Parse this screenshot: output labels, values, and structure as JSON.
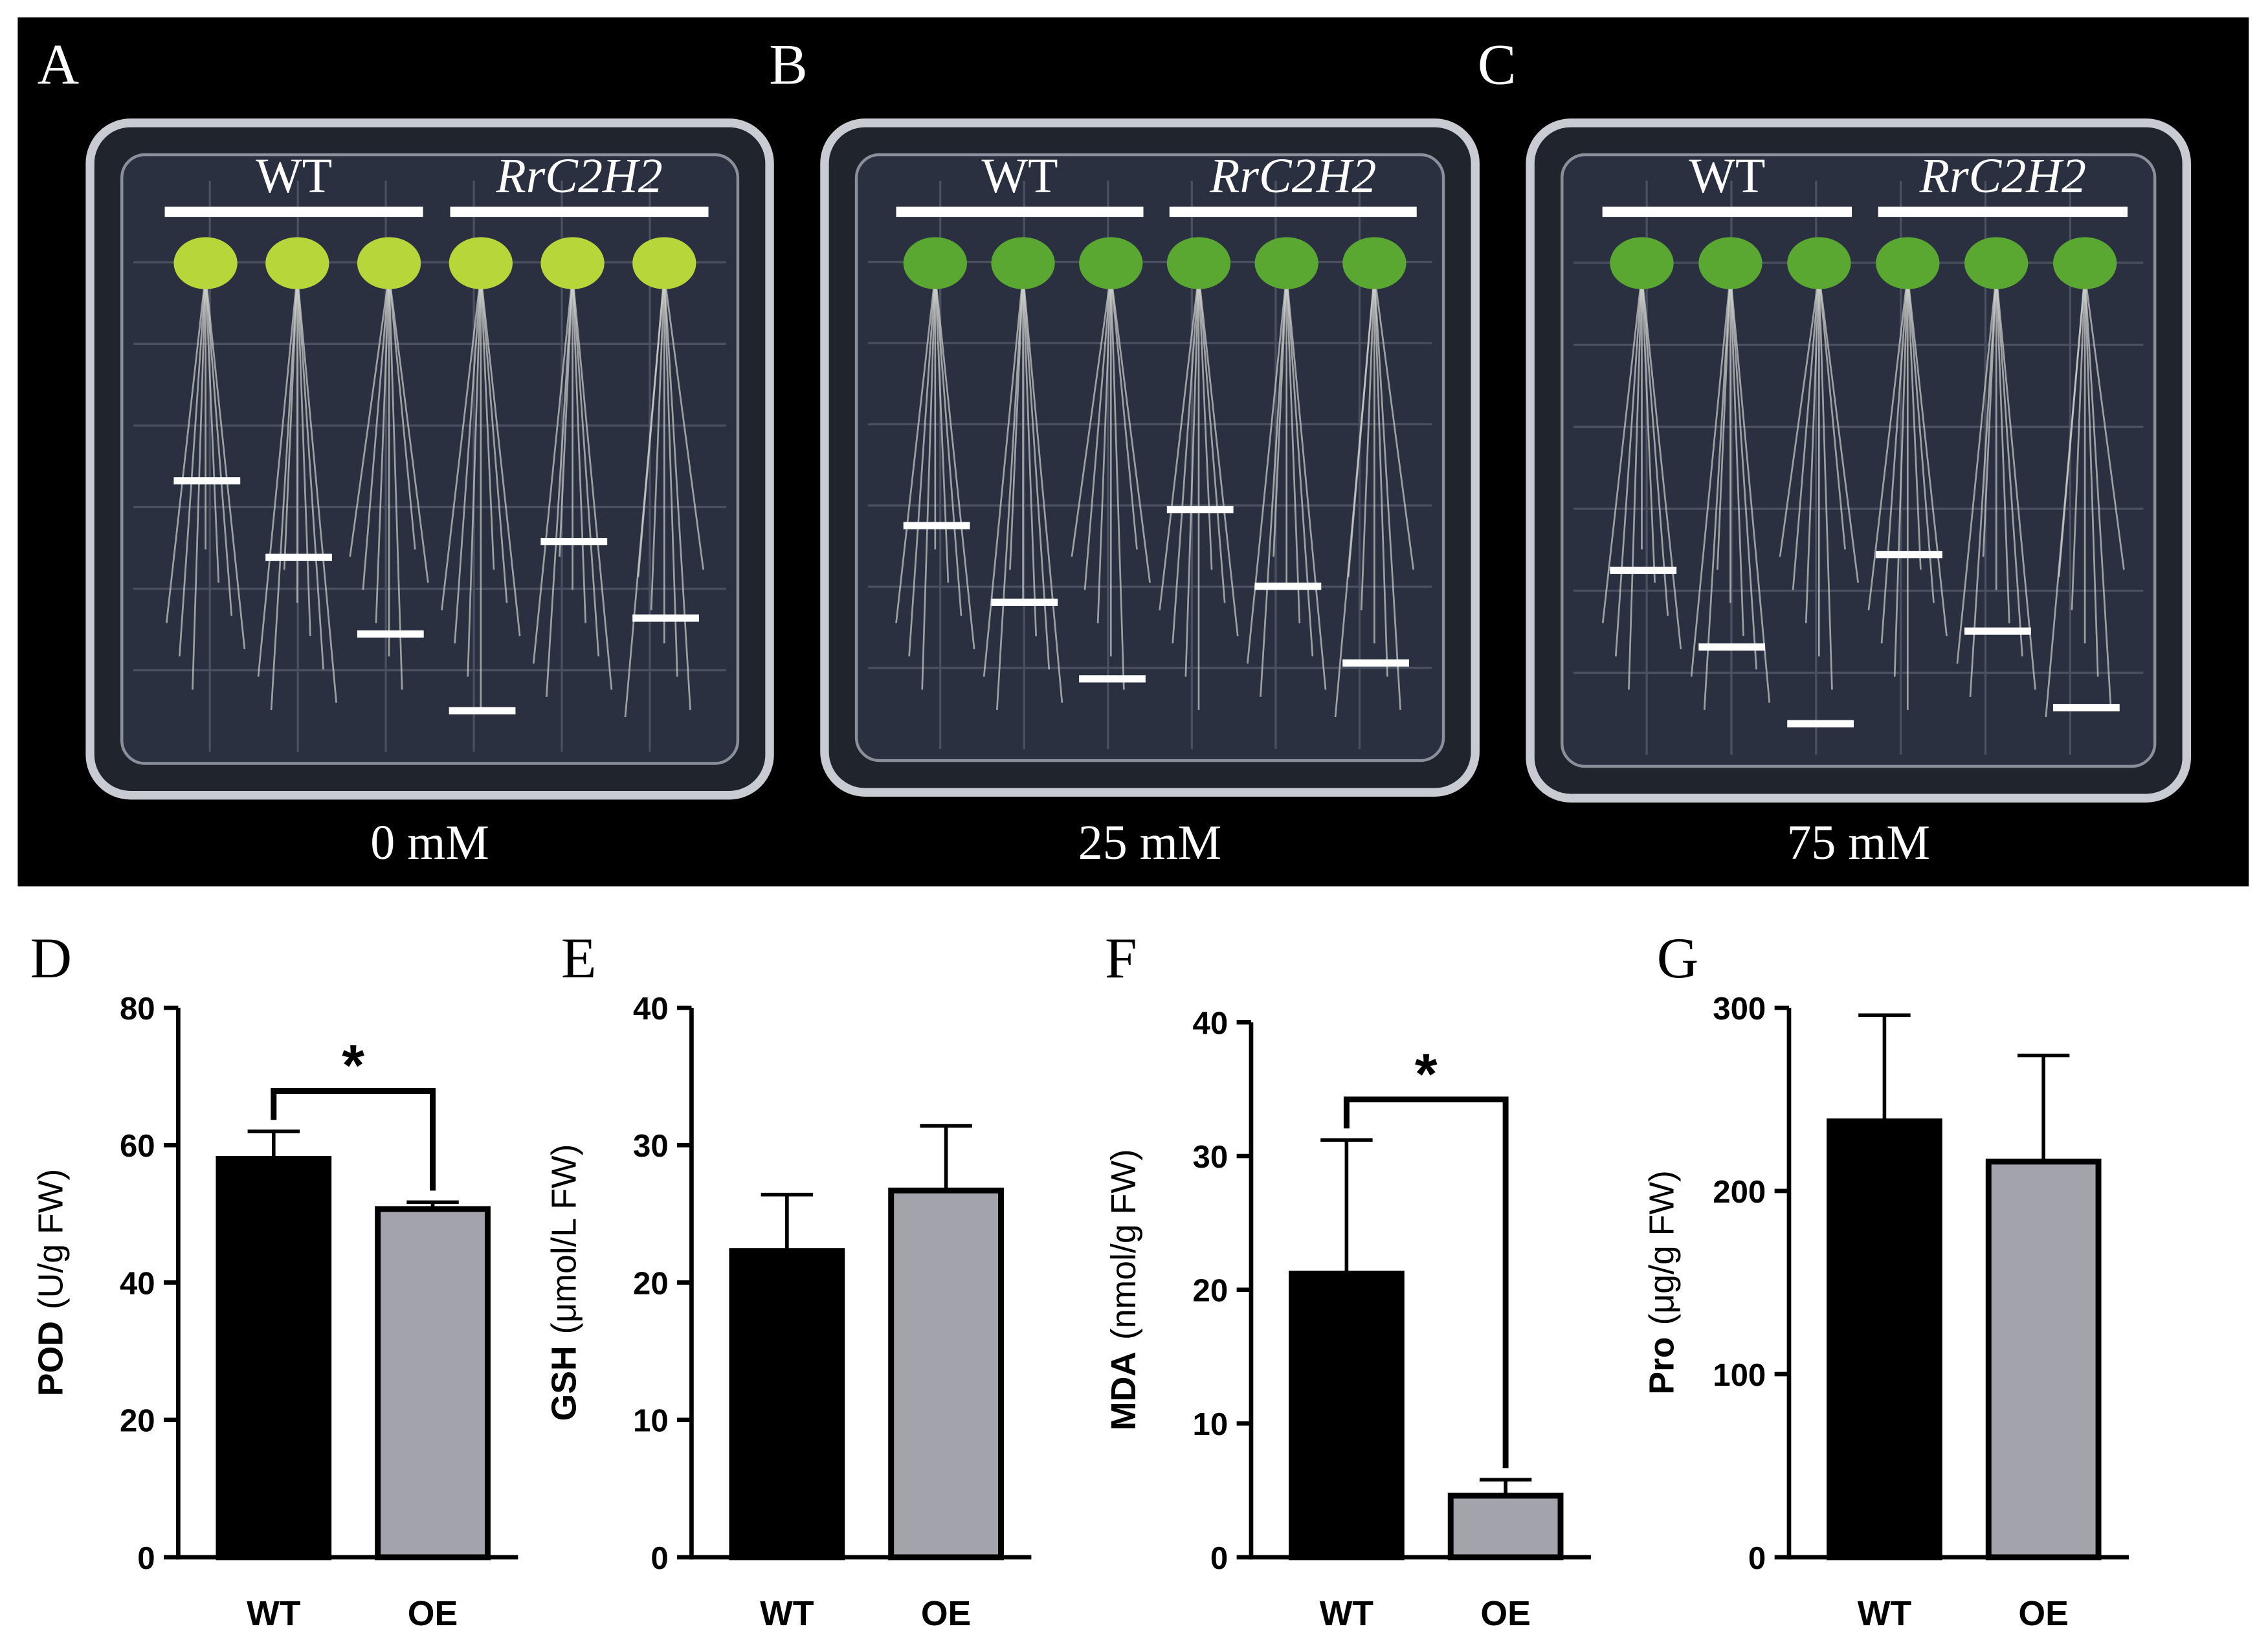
{
  "photos": [
    {
      "letter": "A",
      "groups": [
        "WT",
        "RrC2H2"
      ],
      "condition": "0 mM"
    },
    {
      "letter": "B",
      "groups": [
        "WT",
        "RrC2H2"
      ],
      "condition": "25 mM"
    },
    {
      "letter": "C",
      "groups": [
        "WT",
        "RrC2H2"
      ],
      "condition": "75 mM"
    }
  ],
  "chart_data": [
    {
      "type": "bar",
      "panel": "D",
      "ylabel": "POD",
      "yunit": "(U/g FW)",
      "categories": [
        "WT",
        "OE"
      ],
      "values": [
        58,
        50.7
      ],
      "errors": [
        4,
        1
      ],
      "colors": [
        "#000000",
        "#a3a3ab"
      ],
      "ylim": [
        0,
        80
      ],
      "yticks": [
        0,
        20,
        40,
        60,
        80
      ],
      "significance": "*"
    },
    {
      "type": "bar",
      "panel": "E",
      "ylabel": "GSH",
      "yunit": "(μmol/L FW)",
      "categories": [
        "WT",
        "OE"
      ],
      "values": [
        22.3,
        26.7
      ],
      "errors": [
        4.1,
        4.7
      ],
      "colors": [
        "#000000",
        "#a3a3ab"
      ],
      "ylim": [
        0,
        40
      ],
      "yticks": [
        0,
        10,
        20,
        30,
        40
      ]
    },
    {
      "type": "bar",
      "panel": "F",
      "ylabel": "MDA",
      "yunit": "(nmol/g FW)",
      "categories": [
        "WT",
        "OE"
      ],
      "values": [
        21.2,
        4.6
      ],
      "errors": [
        10,
        1.2
      ],
      "colors": [
        "#000000",
        "#a3a3ab"
      ],
      "ylim": [
        0,
        40
      ],
      "yticks": [
        0,
        10,
        20,
        30,
        40
      ],
      "significance": "*"
    },
    {
      "type": "bar",
      "panel": "G",
      "ylabel": "Pro",
      "yunit": "(μg/g FW)",
      "categories": [
        "WT",
        "OE"
      ],
      "values": [
        238,
        216
      ],
      "errors": [
        58,
        58
      ],
      "colors": [
        "#000000",
        "#a3a3ab"
      ],
      "ylim": [
        0,
        300
      ],
      "yticks": [
        0,
        100,
        200,
        300
      ]
    }
  ]
}
